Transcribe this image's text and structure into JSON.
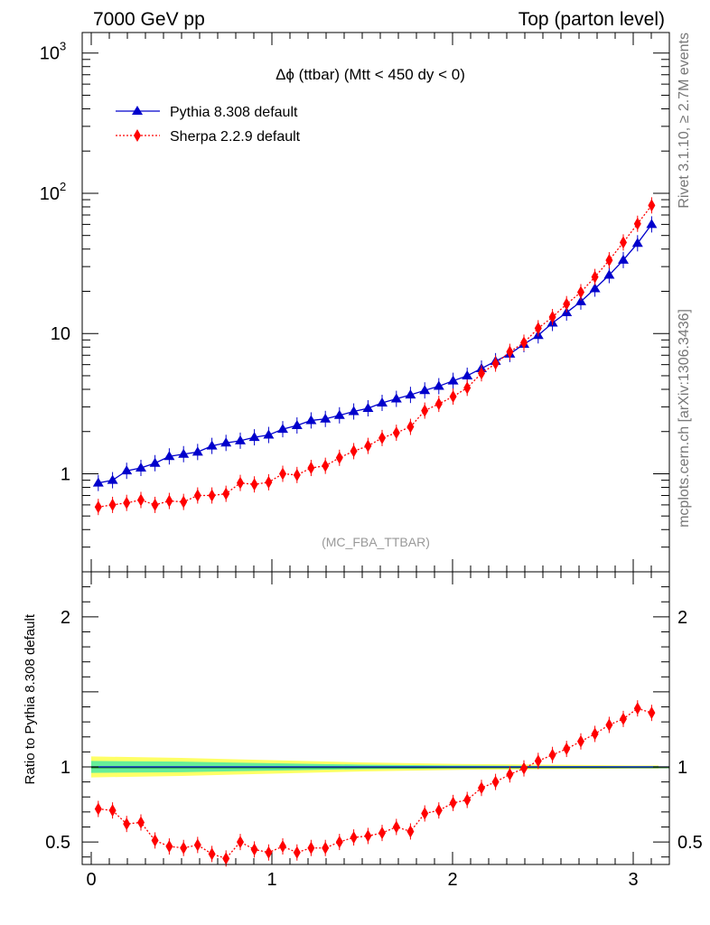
{
  "header": {
    "left": "7000 GeV pp",
    "right": "Top (parton level)"
  },
  "side_labels": {
    "rivet": "Rivet 3.1.10, ≥ 2.7M events",
    "mcplots": "mcplots.cern.ch [arXiv:1306.3436]"
  },
  "chart_data": [
    {
      "type": "line",
      "title": "Δϕ (ttbar) (Mtt < 450 dy < 0)",
      "watermark": "(MC_FBA_TTBAR)",
      "xlabel": "",
      "ylabel": "",
      "y_scale": "log",
      "xlim": [
        -0.05,
        3.2
      ],
      "ylim": [
        0.2,
        1400
      ],
      "y_tick_labels": [
        "1",
        "10",
        "10^2",
        "10^3"
      ],
      "x": [
        0.039,
        0.118,
        0.196,
        0.275,
        0.353,
        0.432,
        0.511,
        0.589,
        0.668,
        0.746,
        0.825,
        0.903,
        0.982,
        1.06,
        1.139,
        1.217,
        1.296,
        1.374,
        1.453,
        1.532,
        1.61,
        1.689,
        1.767,
        1.846,
        1.924,
        2.003,
        2.081,
        2.16,
        2.238,
        2.317,
        2.395,
        2.474,
        2.553,
        2.631,
        2.71,
        2.788,
        2.867,
        2.945,
        3.024,
        3.102
      ],
      "legend_position": "top-left",
      "series": [
        {
          "name": "Pythia 8.308 default",
          "color": "#0000cc",
          "marker": "triangle",
          "line": "solid",
          "values": [
            0.86,
            0.9,
            1.05,
            1.1,
            1.19,
            1.33,
            1.38,
            1.43,
            1.58,
            1.66,
            1.72,
            1.82,
            1.89,
            2.08,
            2.21,
            2.4,
            2.46,
            2.61,
            2.78,
            2.93,
            3.2,
            3.42,
            3.65,
            3.93,
            4.21,
            4.6,
            5.0,
            5.63,
            6.35,
            7.15,
            8.4,
            9.7,
            11.9,
            14.1,
            16.9,
            20.9,
            26.1,
            33.4,
            44.0,
            60.0
          ]
        },
        {
          "name": "Sherpa 2.2.9 default",
          "color": "#ff0000",
          "marker": "diamond",
          "line": "dotted",
          "values": [
            0.58,
            0.6,
            0.62,
            0.65,
            0.6,
            0.64,
            0.63,
            0.7,
            0.7,
            0.72,
            0.86,
            0.84,
            0.87,
            1.0,
            0.98,
            1.1,
            1.14,
            1.3,
            1.45,
            1.58,
            1.8,
            1.96,
            2.16,
            2.82,
            3.15,
            3.55,
            4.1,
            5.2,
            6.1,
            7.4,
            8.6,
            10.9,
            13.1,
            16.2,
            19.7,
            25.3,
            33.3,
            44.6,
            60.6,
            82.0
          ]
        }
      ]
    },
    {
      "type": "line",
      "ylabel": "Ratio to Pythia 8.308 default",
      "xlabel": "",
      "xlim": [
        -0.05,
        3.2
      ],
      "ylim": [
        0.35,
        2.3
      ],
      "x_tick_labels": [
        "0",
        "1",
        "2",
        "3"
      ],
      "y_tick_labels": [
        "0.5",
        "1",
        "2"
      ],
      "reference_line": 1,
      "uncertainty_bands": [
        {
          "color": "#ffff66",
          "x": [
            0.0,
            0.5,
            1.0,
            1.5,
            2.0,
            2.5,
            3.0,
            3.14
          ],
          "lower": [
            0.93,
            0.94,
            0.955,
            0.97,
            0.98,
            0.985,
            0.99,
            0.99
          ],
          "upper": [
            1.07,
            1.06,
            1.045,
            1.03,
            1.02,
            1.015,
            1.01,
            1.01
          ]
        },
        {
          "color": "#66ee99",
          "x": [
            0.0,
            0.5,
            1.0,
            1.5,
            2.0,
            2.5,
            3.0,
            3.14
          ],
          "lower": [
            0.96,
            0.965,
            0.975,
            0.985,
            0.99,
            0.993,
            0.995,
            0.995
          ],
          "upper": [
            1.04,
            1.035,
            1.025,
            1.015,
            1.01,
            1.007,
            1.005,
            1.005
          ]
        }
      ],
      "series": [
        {
          "name": "Sherpa 2.2.9 default",
          "color": "#ff0000",
          "marker": "diamond",
          "line": "dotted",
          "values": [
            0.72,
            0.71,
            0.62,
            0.63,
            0.51,
            0.47,
            0.46,
            0.48,
            0.42,
            0.39,
            0.5,
            0.45,
            0.43,
            0.47,
            0.43,
            0.46,
            0.46,
            0.5,
            0.53,
            0.54,
            0.56,
            0.6,
            0.57,
            0.69,
            0.71,
            0.76,
            0.78,
            0.86,
            0.9,
            0.95,
            0.99,
            1.04,
            1.08,
            1.12,
            1.17,
            1.22,
            1.28,
            1.32,
            1.39,
            1.36
          ]
        }
      ]
    }
  ]
}
